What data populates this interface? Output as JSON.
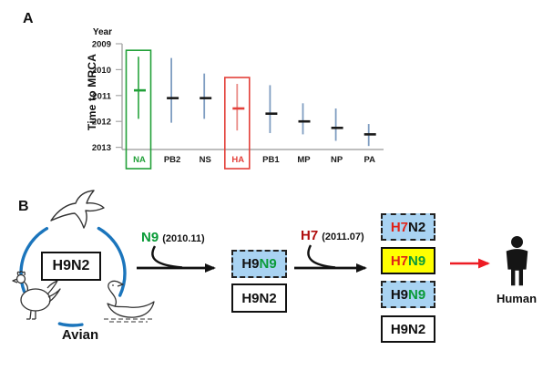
{
  "figure": {
    "background": "#ffffff"
  },
  "panel_a": {
    "label": "A"
  },
  "chart_data": {
    "type": "scatter",
    "subtype": "point-range (posterior mean with credible interval per gene segment)",
    "title": "",
    "xlabel": "",
    "ylabel": "Time to MRCA",
    "y_axis_title": "Year",
    "y_ticks": [
      "2009",
      "2010",
      "2011",
      "2012",
      "2013"
    ],
    "y_range": [
      2009,
      2013.1
    ],
    "y_axis_direction": "increasing-downward",
    "grid": false,
    "legend": false,
    "categories": [
      "NA",
      "PB2",
      "NS",
      "HA",
      "PB1",
      "MP",
      "NP",
      "PA"
    ],
    "series": [
      {
        "segment": "NA",
        "mean": 2010.8,
        "interval_start": 2009.5,
        "interval_end": 2011.9,
        "highlight": "green"
      },
      {
        "segment": "PB2",
        "mean": 2011.1,
        "interval_start": 2009.55,
        "interval_end": 2012.05,
        "highlight": null
      },
      {
        "segment": "NS",
        "mean": 2011.1,
        "interval_start": 2010.15,
        "interval_end": 2011.9,
        "highlight": null
      },
      {
        "segment": "HA",
        "mean": 2011.5,
        "interval_start": 2010.55,
        "interval_end": 2012.35,
        "highlight": "red"
      },
      {
        "segment": "PB1",
        "mean": 2011.7,
        "interval_start": 2010.6,
        "interval_end": 2012.45,
        "highlight": null
      },
      {
        "segment": "MP",
        "mean": 2012.0,
        "interval_start": 2011.3,
        "interval_end": 2012.5,
        "highlight": null
      },
      {
        "segment": "NP",
        "mean": 2012.25,
        "interval_start": 2011.5,
        "interval_end": 2012.75,
        "highlight": null
      },
      {
        "segment": "PA",
        "mean": 2012.5,
        "interval_start": 2012.1,
        "interval_end": 2012.95,
        "highlight": null
      }
    ]
  },
  "panel_b": {
    "label": "B",
    "avian_source": {
      "virus": "H9N2",
      "host": "Avian",
      "birds": [
        "swallow",
        "rooster",
        "swan"
      ]
    },
    "steps": [
      {
        "gene": "N9",
        "date": "(2010.11)"
      },
      {
        "gene": "H7",
        "date": "(2011.07)"
      }
    ],
    "intermediate_viruses": [
      {
        "parts": [
          {
            "text": "H9",
            "color": "black"
          },
          {
            "text": "N9",
            "color": "green"
          }
        ],
        "box_style": "blue-dashed"
      },
      {
        "parts": [
          {
            "text": "H9N2",
            "color": "black"
          }
        ],
        "box_style": "white-solid"
      }
    ],
    "emergent_viruses": [
      {
        "parts": [
          {
            "text": "H7",
            "color": "red"
          },
          {
            "text": "N2",
            "color": "black"
          }
        ],
        "box_style": "blue-dashed"
      },
      {
        "parts": [
          {
            "text": "H7",
            "color": "red"
          },
          {
            "text": "N9",
            "color": "green"
          }
        ],
        "box_style": "yellow-solid"
      },
      {
        "parts": [
          {
            "text": "H9",
            "color": "black"
          },
          {
            "text": "N9",
            "color": "green"
          }
        ],
        "box_style": "blue-dashed"
      },
      {
        "parts": [
          {
            "text": "H9N2",
            "color": "black"
          }
        ],
        "box_style": "white-solid"
      }
    ],
    "human_label": "Human"
  },
  "colors": {
    "interval_bar_blue": "#7f9dc1",
    "mean_tick_black": "#1a1a1a",
    "highlight_green": "#21a038",
    "green_bar": "#3fae52",
    "highlight_red": "#e3403a",
    "red_bar": "#ea8a86",
    "axis_gray": "#a8a8a8",
    "label_black": "#1a1a1a",
    "gene_green": "#0a9b38",
    "gene_red": "#e02318",
    "gene_dark_red": "#b00d0d",
    "virus_box_blue_fill": "#a9d3f2",
    "virus_box_yellow_fill": "#ffff00",
    "circle_blue": "#1b75bc",
    "human_arrow_red": "#ed1c24",
    "text_black": "#111111"
  }
}
